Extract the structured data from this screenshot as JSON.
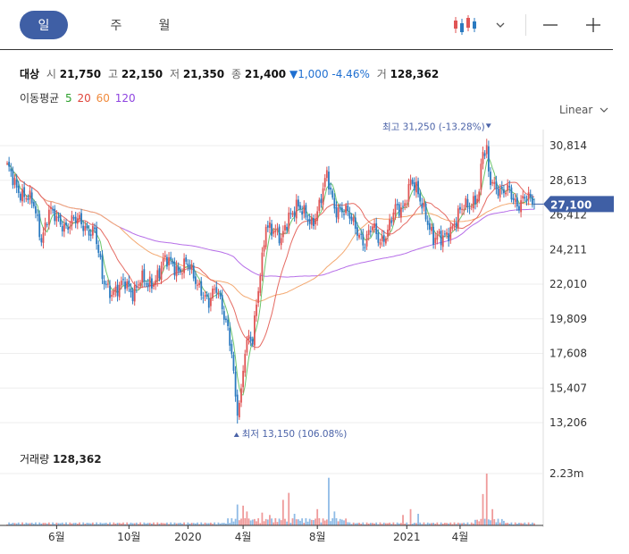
{
  "tabs": [
    {
      "label": "일",
      "active": true
    },
    {
      "label": "주",
      "active": false
    },
    {
      "label": "월",
      "active": false
    }
  ],
  "controls": {
    "chart_type_icon": "candlestick-icon",
    "dropdown_icon": "chevron-down-icon",
    "zoom_out_icon": "minus-icon",
    "zoom_in_icon": "plus-icon"
  },
  "summary": {
    "name": "대상",
    "open_label": "시",
    "open": "21,750",
    "high_label": "고",
    "high": "22,150",
    "low_label": "저",
    "low": "21,350",
    "close_label": "종",
    "close": "21,400",
    "change_arrow": "▼",
    "change": "1,000",
    "change_pct": "-4.46%",
    "volume_label": "거",
    "volume": "128,362"
  },
  "moving_average": {
    "label": "이동평균",
    "periods": [
      {
        "value": "5",
        "color": "#2ca02c"
      },
      {
        "value": "20",
        "color": "#e0463c"
      },
      {
        "value": "60",
        "color": "#f08a3c"
      },
      {
        "value": "120",
        "color": "#8e44e0"
      }
    ]
  },
  "scale_mode": "Linear",
  "colors": {
    "up": "#e05555",
    "down": "#2a7ac0",
    "accent": "#3f5fa5",
    "price_tag": "#3f5fa5"
  },
  "chart_data": {
    "type": "candlestick",
    "y_ticks": [
      "30,814",
      "28,613",
      "26,412",
      "24,211",
      "22,010",
      "19,809",
      "17,608",
      "15,407",
      "13,206"
    ],
    "y_tick_values": [
      30814,
      28613,
      26412,
      24211,
      22010,
      19809,
      17608,
      15407,
      13206
    ],
    "ylim": [
      13206,
      30814
    ],
    "x_ticks": [
      {
        "label": "6월",
        "index": 26
      },
      {
        "label": "10월",
        "index": 64
      },
      {
        "label": "2020",
        "index": 95
      },
      {
        "label": "4월",
        "index": 124
      },
      {
        "label": "8월",
        "index": 163
      },
      {
        "label": "2021",
        "index": 210
      },
      {
        "label": "4월",
        "index": 238
      }
    ],
    "n_bars": 278,
    "current_price": "27,100",
    "current_price_value": 27100,
    "max_annotation": {
      "label": "최고",
      "value": "31,250",
      "pct": "(-13.28%)",
      "index": 252,
      "price": 31250
    },
    "min_annotation": {
      "label": "최저",
      "value": "13,150",
      "pct": "(106.08%)",
      "index": 121,
      "price": 13150
    },
    "close_path": [
      [
        0,
        29300
      ],
      [
        5,
        28200
      ],
      [
        10,
        27600
      ],
      [
        14,
        26900
      ],
      [
        18,
        25000
      ],
      [
        22,
        26700
      ],
      [
        26,
        26000
      ],
      [
        30,
        25800
      ],
      [
        34,
        26000
      ],
      [
        38,
        25900
      ],
      [
        42,
        25600
      ],
      [
        46,
        25400
      ],
      [
        50,
        22300
      ],
      [
        54,
        21700
      ],
      [
        58,
        21600
      ],
      [
        62,
        22000
      ],
      [
        66,
        21600
      ],
      [
        70,
        22300
      ],
      [
        74,
        21800
      ],
      [
        78,
        22500
      ],
      [
        82,
        23400
      ],
      [
        86,
        23300
      ],
      [
        90,
        23000
      ],
      [
        94,
        23300
      ],
      [
        98,
        22400
      ],
      [
        102,
        21800
      ],
      [
        106,
        20700
      ],
      [
        110,
        21700
      ],
      [
        113,
        20800
      ],
      [
        116,
        19200
      ],
      [
        118,
        17500
      ],
      [
        120,
        14500
      ],
      [
        121,
        13400
      ],
      [
        123,
        15200
      ],
      [
        125,
        18200
      ],
      [
        127,
        18800
      ],
      [
        129,
        18400
      ],
      [
        132,
        21500
      ],
      [
        134,
        23500
      ],
      [
        136,
        26000
      ],
      [
        140,
        25500
      ],
      [
        144,
        24600
      ],
      [
        148,
        26500
      ],
      [
        152,
        27000
      ],
      [
        156,
        26300
      ],
      [
        160,
        26000
      ],
      [
        164,
        27000
      ],
      [
        168,
        28800
      ],
      [
        172,
        27000
      ],
      [
        176,
        26700
      ],
      [
        180,
        26200
      ],
      [
        184,
        25600
      ],
      [
        188,
        24500
      ],
      [
        192,
        25600
      ],
      [
        196,
        24900
      ],
      [
        200,
        25300
      ],
      [
        204,
        26700
      ],
      [
        208,
        27000
      ],
      [
        212,
        28500
      ],
      [
        216,
        27600
      ],
      [
        220,
        26600
      ],
      [
        224,
        24800
      ],
      [
        228,
        24800
      ],
      [
        232,
        25500
      ],
      [
        236,
        26000
      ],
      [
        240,
        26900
      ],
      [
        244,
        27300
      ],
      [
        248,
        27700
      ],
      [
        250,
        30500
      ],
      [
        253,
        29000
      ],
      [
        256,
        28500
      ],
      [
        260,
        27700
      ],
      [
        264,
        27900
      ],
      [
        268,
        27200
      ],
      [
        272,
        27400
      ],
      [
        277,
        27100
      ]
    ],
    "volume_label": "거래량",
    "volume": "128,362",
    "volume_axis_tick": "2.23m",
    "volume_axis_value": 2230000,
    "volume_spikes": [
      [
        121,
        900000
      ],
      [
        124,
        850000
      ],
      [
        126,
        600000
      ],
      [
        134,
        550000
      ],
      [
        138,
        450000
      ],
      [
        145,
        1100000
      ],
      [
        148,
        1400000
      ],
      [
        151,
        500000
      ],
      [
        163,
        700000
      ],
      [
        169,
        2050000
      ],
      [
        172,
        600000
      ],
      [
        208,
        450000
      ],
      [
        212,
        700000
      ],
      [
        216,
        500000
      ],
      [
        250,
        1350000
      ],
      [
        252,
        2230000
      ],
      [
        255,
        700000
      ]
    ]
  }
}
